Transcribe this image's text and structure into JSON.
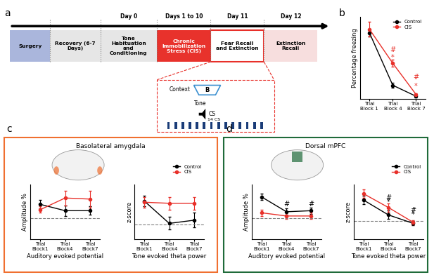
{
  "timeline": {
    "label": "a",
    "stages": [
      {
        "text": "Surgery",
        "color": "#aab6dc"
      },
      {
        "text": "Recovery (6-7 Days)",
        "color": "#e6e6e6"
      },
      {
        "text": "Tone Habituation and Conditioning",
        "color": "#e6e6e6",
        "day": "Day 0"
      },
      {
        "text": "Chronic Immobilization Stress (CIS)",
        "color": "#e8322c",
        "day": "Days 1 to 10"
      },
      {
        "text": "Fear Recall and Extinction",
        "color": "#ffffff",
        "day": "Day 11"
      },
      {
        "text": "Extinction Recall",
        "color": "#f7dede",
        "day": "Day 12"
      }
    ],
    "context": "Context",
    "context_name": "B",
    "tone": "Tone",
    "stimulus": "CS",
    "trials": "14 CS"
  },
  "panels": [
    {
      "label": "c",
      "title": "Basolateral amygdala",
      "color": "#f07030"
    },
    {
      "label": "d",
      "title": "Dorsal mPFC",
      "color": "#1f6b3a"
    }
  ],
  "chart_data": [
    {
      "type": "line",
      "label": "b",
      "ylabel": "Percentage freezing",
      "categories": [
        "Trial Block 1",
        "Trial Block 4",
        "Trial Block 7"
      ],
      "ylim": [
        0,
        90
      ],
      "tick_labels": "x",
      "legend": "upper right",
      "series": [
        {
          "name": "Control",
          "color": "#000000",
          "marker": "o",
          "values": [
            72,
            15,
            3
          ],
          "errors": [
            4,
            3,
            1
          ]
        },
        {
          "name": "CIS",
          "color": "#e8302a",
          "marker": "o",
          "values": [
            76,
            39,
            5
          ],
          "errors": [
            8,
            4,
            1
          ]
        }
      ],
      "annotations": [
        {
          "text": "#",
          "x": "Trial Block 4",
          "y": 54,
          "color": "#e8302a"
        },
        {
          "text": "*",
          "x": "Trial Block 4",
          "y": 45,
          "color": "#e8302a"
        },
        {
          "text": "#",
          "x": "Trial Block 7",
          "y": 24,
          "color": "#e8302a"
        },
        {
          "text": "*",
          "x": "Trial Block 7",
          "y": 14,
          "color": "#e8302a"
        }
      ]
    },
    {
      "type": "line",
      "panel": "c",
      "ylabel": "Amplitude %",
      "xlabel": "Auditory evoked potential",
      "categories": [
        "Trial Block1",
        "Trial Block4",
        "Trial Block7"
      ],
      "ylim": [
        0,
        260
      ],
      "tick_labels": "x",
      "baseline": 100,
      "series": [
        {
          "name": "Control",
          "color": "#000000",
          "marker": "o",
          "values": [
            165,
            135,
            135
          ],
          "errors": [
            20,
            25,
            20
          ]
        },
        {
          "name": "CIS",
          "color": "#e8302a",
          "marker": "o",
          "values": [
            140,
            195,
            190
          ],
          "errors": [
            15,
            35,
            40
          ]
        }
      ],
      "annotations": []
    },
    {
      "type": "line",
      "panel": "c",
      "ylabel": "z-score",
      "xlabel": "Tone evoked theta power",
      "categories": [
        "Trial Block1",
        "Trial Block4",
        "Trial Block7"
      ],
      "ylim": [
        0,
        260
      ],
      "tick_labels": "x",
      "baseline": 70,
      "legend": "upper right",
      "series": [
        {
          "name": "Control",
          "color": "#000000",
          "marker": "o",
          "values": [
            180,
            75,
            90
          ],
          "errors": [
            25,
            30,
            35
          ]
        },
        {
          "name": "CIS",
          "color": "#e8302a",
          "marker": "o",
          "values": [
            175,
            170,
            170
          ],
          "errors": [
            25,
            30,
            30
          ]
        }
      ],
      "annotations": []
    },
    {
      "type": "line",
      "panel": "d",
      "ylabel": "Amplitude %",
      "xlabel": "Auditory evoked potential",
      "categories": [
        "Trial Block1",
        "Trial Block4",
        "Trial Block7"
      ],
      "ylim": [
        0,
        260
      ],
      "tick_labels": "x",
      "baseline": 100,
      "series": [
        {
          "name": "Control",
          "color": "#000000",
          "marker": "o",
          "values": [
            200,
            130,
            135
          ],
          "errors": [
            15,
            15,
            15
          ]
        },
        {
          "name": "CIS",
          "color": "#e8302a",
          "marker": "o",
          "values": [
            125,
            110,
            110
          ],
          "errors": [
            15,
            15,
            15
          ]
        }
      ],
      "annotations": [
        {
          "text": "#",
          "x": "Trial Block4",
          "y": 165,
          "color": "#000000"
        },
        {
          "text": "#",
          "x": "Trial Block7",
          "y": 165,
          "color": "#000000"
        }
      ]
    },
    {
      "type": "line",
      "panel": "d",
      "ylabel": "z-score",
      "xlabel": "Tone evoked theta power",
      "categories": [
        "Trial Block1",
        "Trial Block4",
        "Trial Block7"
      ],
      "ylim": [
        0,
        260
      ],
      "tick_labels": "x",
      "baseline": 85,
      "legend": "upper right",
      "series": [
        {
          "name": "Control",
          "color": "#000000",
          "marker": "o",
          "values": [
            185,
            115,
            75
          ],
          "errors": [
            20,
            20,
            10
          ]
        },
        {
          "name": "CIS",
          "color": "#e8302a",
          "marker": "o",
          "values": [
            215,
            150,
            80
          ],
          "errors": [
            20,
            20,
            10
          ]
        }
      ],
      "annotations": [
        {
          "text": "#",
          "x": "Trial Block4",
          "y": 195,
          "color": "#000000"
        },
        {
          "text": "*",
          "x": "Trial Block4",
          "y": 175,
          "color": "#000000"
        },
        {
          "text": "#",
          "x": "Trial Block7",
          "y": 135,
          "color": "#000000"
        },
        {
          "text": "*",
          "x": "Trial Block7",
          "y": 115,
          "color": "#000000"
        }
      ]
    }
  ]
}
